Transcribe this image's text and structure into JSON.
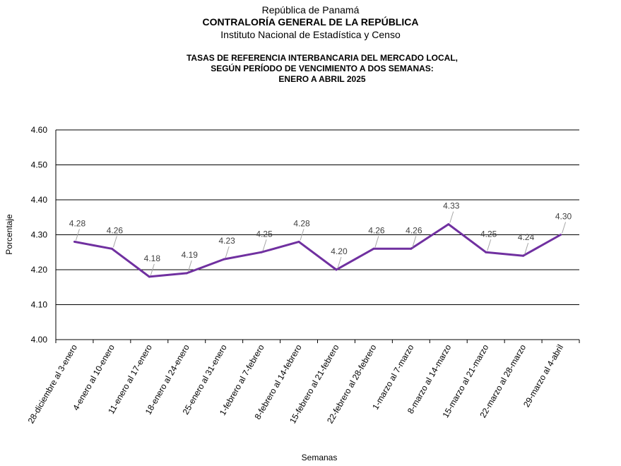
{
  "header": {
    "line1": "República de Panamá",
    "line2": "CONTRALORÍA GENERAL DE LA REPÚBLICA",
    "line3": "Instituto Nacional de Estadística y Censo"
  },
  "chart_data": {
    "type": "line",
    "title": [
      "TASAS DE REFERENCIA INTERBANCARIA DEL MERCADO LOCAL,",
      "SEGÚN PERÍODO DE VENCIMIENTO A DOS SEMANAS:",
      "ENERO A ABRIL 2025"
    ],
    "xlabel": "Semanas",
    "ylabel": "Porcentaje",
    "ylim": [
      4.0,
      4.6
    ],
    "yticks": [
      "4.00",
      "4.10",
      "4.20",
      "4.30",
      "4.40",
      "4.50",
      "4.60"
    ],
    "grid": true,
    "legend": "none",
    "color": "#7030A0",
    "categories": [
      "28-diciembre al 3-enero",
      "4-enero al 10-enero",
      "11-enero al 17-enero",
      "18-enero al 24-enero",
      "25-enero al 31-enero",
      "1-febrero al 7-febrero",
      "8-febrero al 14-febrero",
      "15-febrero al 21-febrero",
      "22-febrero al 28-febrero",
      "1-marzo al 7-marzo",
      "8-marzo al 14-marzo",
      "15-marzo al 21-marzo",
      "22-marzo al 28-marzo",
      "29-marzo al 4-abril"
    ],
    "values": [
      4.28,
      4.26,
      4.18,
      4.19,
      4.23,
      4.25,
      4.28,
      4.2,
      4.26,
      4.26,
      4.33,
      4.25,
      4.24,
      4.3
    ],
    "data_labels": [
      "4.28",
      "4.26",
      "4.18",
      "4.19",
      "4.23",
      "4.25",
      "4.28",
      "4.20",
      "4.26",
      "4.26",
      "4.33",
      "4.25",
      "4.24",
      "4.30"
    ]
  }
}
